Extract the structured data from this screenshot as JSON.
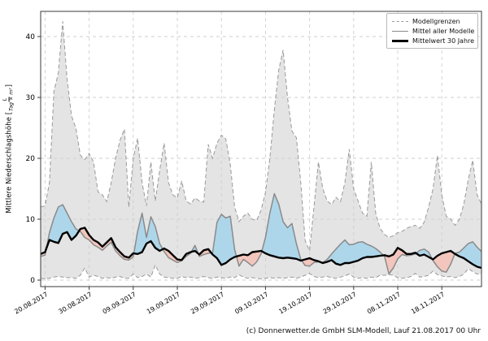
{
  "footer": {
    "text": "(c) Donnerwetter.de GmbH SLM-Modell, Lauf 21.08.2017 00 Uhr"
  },
  "chart_data": {
    "type": "line",
    "title": "",
    "xlabel": "",
    "ylabel": {
      "prefix": "Mittlere Niederschlagshöhe [",
      "fraction_numerator": "L",
      "fraction_denominator": "Tag × m²",
      "suffix": "]"
    },
    "y_ticks": [
      0,
      10,
      20,
      30,
      40
    ],
    "ylim": [
      -1.2,
      45.2
    ],
    "grid": true,
    "legend_position": "upper right",
    "x_tick_labels": [
      "20.08.2017",
      "30.08.2017",
      "09.09.2017",
      "19.09.2017",
      "29.09.2017",
      "09.10.2017",
      "19.10.2017",
      "29.10.2017",
      "08.11.2017",
      "18.11.2017"
    ],
    "x_tick_positions": [
      1,
      11,
      21,
      31,
      41,
      51,
      61,
      71,
      81,
      91
    ],
    "n_points": 101,
    "legend": [
      {
        "label": "Modellgrenzen",
        "line": "dashed-gray"
      },
      {
        "label": "Mittel aller Modelle",
        "line": "solid-gray"
      },
      {
        "label": "Mittelwert 30 Jahre",
        "line": "thick-black"
      }
    ],
    "series": [
      {
        "name": "Modellgrenzen (obere Grenze)",
        "role": "upper",
        "values": [
          12.0,
          12.2,
          16.0,
          31.0,
          34.0,
          42.5,
          33.0,
          27.0,
          24.9,
          20.5,
          19.8,
          20.8,
          19.4,
          14.5,
          14.0,
          12.9,
          16.0,
          20.0,
          23.0,
          24.8,
          12.0,
          20.0,
          23.3,
          16.0,
          12.2,
          19.4,
          13.0,
          18.0,
          22.5,
          16.0,
          14.0,
          13.5,
          16.3,
          13.0,
          12.5,
          13.5,
          13.0,
          12.8,
          22.3,
          20.0,
          22.5,
          23.8,
          23.2,
          19.0,
          12.0,
          9.6,
          10.5,
          11.0,
          10.0,
          9.8,
          11.5,
          14.4,
          20.0,
          28.0,
          34.5,
          37.8,
          30.0,
          24.5,
          23.4,
          16.0,
          6.5,
          4.8,
          12.0,
          19.4,
          15.0,
          13.0,
          12.4,
          13.6,
          12.9,
          16.0,
          21.5,
          15.0,
          13.0,
          11.0,
          10.5,
          19.4,
          11.0,
          8.5,
          7.5,
          7.0,
          7.3,
          7.8,
          8.0,
          8.5,
          8.8,
          9.0,
          8.5,
          9.5,
          12.0,
          15.0,
          20.5,
          14.0,
          10.5,
          10.0,
          9.0,
          10.0,
          12.5,
          16.5,
          19.7,
          14.0,
          12.5
        ]
      },
      {
        "name": "Modellgrenzen (untere Grenze)",
        "role": "lower",
        "values": [
          0.3,
          0.2,
          0.3,
          0.5,
          0.6,
          0.5,
          0.4,
          0.4,
          0.3,
          0.8,
          2.0,
          0.5,
          0.8,
          0.6,
          0.3,
          0.4,
          0.3,
          0.5,
          0.6,
          0.3,
          0.3,
          1.0,
          0.4,
          0.6,
          1.0,
          0.5,
          2.5,
          1.0,
          0.5,
          0.4,
          0.3,
          0.3,
          0.6,
          0.4,
          0.5,
          0.3,
          0.4,
          0.6,
          0.4,
          0.3,
          0.5,
          0.4,
          0.3,
          0.5,
          0.4,
          0.9,
          0.5,
          0.3,
          0.4,
          0.3,
          0.2,
          0.3,
          0.4,
          0.3,
          0.4,
          0.3,
          0.4,
          0.5,
          0.3,
          0.5,
          0.8,
          1.1,
          0.6,
          0.4,
          0.5,
          0.6,
          0.4,
          0.3,
          0.5,
          0.7,
          1.0,
          0.5,
          0.3,
          0.4,
          0.3,
          0.5,
          0.4,
          0.8,
          0.8,
          0.9,
          0.8,
          0.4,
          0.3,
          0.4,
          0.6,
          1.1,
          0.5,
          0.6,
          0.8,
          1.5,
          0.9,
          0.7,
          0.5,
          0.6,
          0.4,
          0.6,
          1.0,
          1.9,
          1.4,
          1.0,
          1.0
        ]
      },
      {
        "name": "Mittel aller Modelle",
        "role": "mean",
        "values": [
          3.9,
          4.1,
          7.8,
          10.2,
          12.0,
          12.4,
          11.0,
          9.6,
          8.4,
          8.0,
          7.0,
          6.6,
          5.8,
          5.4,
          4.9,
          5.6,
          6.2,
          4.8,
          4.0,
          3.4,
          3.3,
          3.8,
          8.0,
          11.0,
          7.0,
          10.4,
          8.8,
          6.0,
          4.7,
          3.7,
          3.3,
          2.9,
          3.2,
          3.9,
          4.4,
          5.7,
          3.9,
          4.2,
          4.4,
          4.5,
          9.5,
          10.8,
          10.2,
          10.5,
          5.0,
          2.3,
          3.4,
          2.9,
          2.3,
          3.0,
          4.3,
          7.0,
          11.0,
          14.2,
          12.5,
          9.6,
          8.6,
          9.3,
          6.0,
          3.4,
          2.4,
          2.3,
          2.9,
          3.0,
          2.9,
          3.4,
          4.3,
          5.1,
          5.9,
          6.6,
          5.8,
          5.9,
          6.2,
          6.3,
          5.9,
          5.6,
          5.2,
          4.6,
          3.9,
          1.0,
          2.0,
          3.5,
          4.2,
          4.0,
          4.1,
          4.3,
          4.9,
          5.1,
          4.6,
          3.2,
          2.2,
          1.5,
          1.3,
          2.6,
          4.4,
          4.6,
          5.3,
          6.0,
          6.3,
          5.4,
          4.7
        ]
      },
      {
        "name": "Mittelwert 30 Jahre",
        "role": "clim",
        "values": [
          4.3,
          4.6,
          6.6,
          6.3,
          6.1,
          7.6,
          7.9,
          6.6,
          7.3,
          8.4,
          8.6,
          7.4,
          6.6,
          6.2,
          5.5,
          6.2,
          6.9,
          5.4,
          4.6,
          3.9,
          3.7,
          4.4,
          4.3,
          4.6,
          6.0,
          6.4,
          5.3,
          4.8,
          5.2,
          4.8,
          4.1,
          3.4,
          3.3,
          4.3,
          4.6,
          4.8,
          4.2,
          4.9,
          5.1,
          4.2,
          3.6,
          2.5,
          2.8,
          3.4,
          3.8,
          4.0,
          4.2,
          4.1,
          4.6,
          4.7,
          4.8,
          4.4,
          4.1,
          3.9,
          3.7,
          3.6,
          3.7,
          3.6,
          3.5,
          3.2,
          3.4,
          3.6,
          3.3,
          3.1,
          2.8,
          3.0,
          3.3,
          2.7,
          2.5,
          2.8,
          2.8,
          3.0,
          3.2,
          3.6,
          3.8,
          3.8,
          3.9,
          4.0,
          4.1,
          3.9,
          4.2,
          5.3,
          4.9,
          4.3,
          4.3,
          4.5,
          4.0,
          4.2,
          3.8,
          3.4,
          4.0,
          4.4,
          4.6,
          4.8,
          4.3,
          3.9,
          3.6,
          3.1,
          2.6,
          2.2,
          2.0
        ]
      }
    ],
    "colors": {
      "band_fill": "#e4e4e4",
      "bound_line": "#999999",
      "model_mean_line": "#8a8a8a",
      "climate_mean_line": "#000000",
      "above_normal_fill": "#aed6ea",
      "below_normal_fill": "#f2c6bd",
      "grid": "#cfcfcf",
      "spine": "#3a3a3a",
      "tick_text": "#000000"
    }
  }
}
